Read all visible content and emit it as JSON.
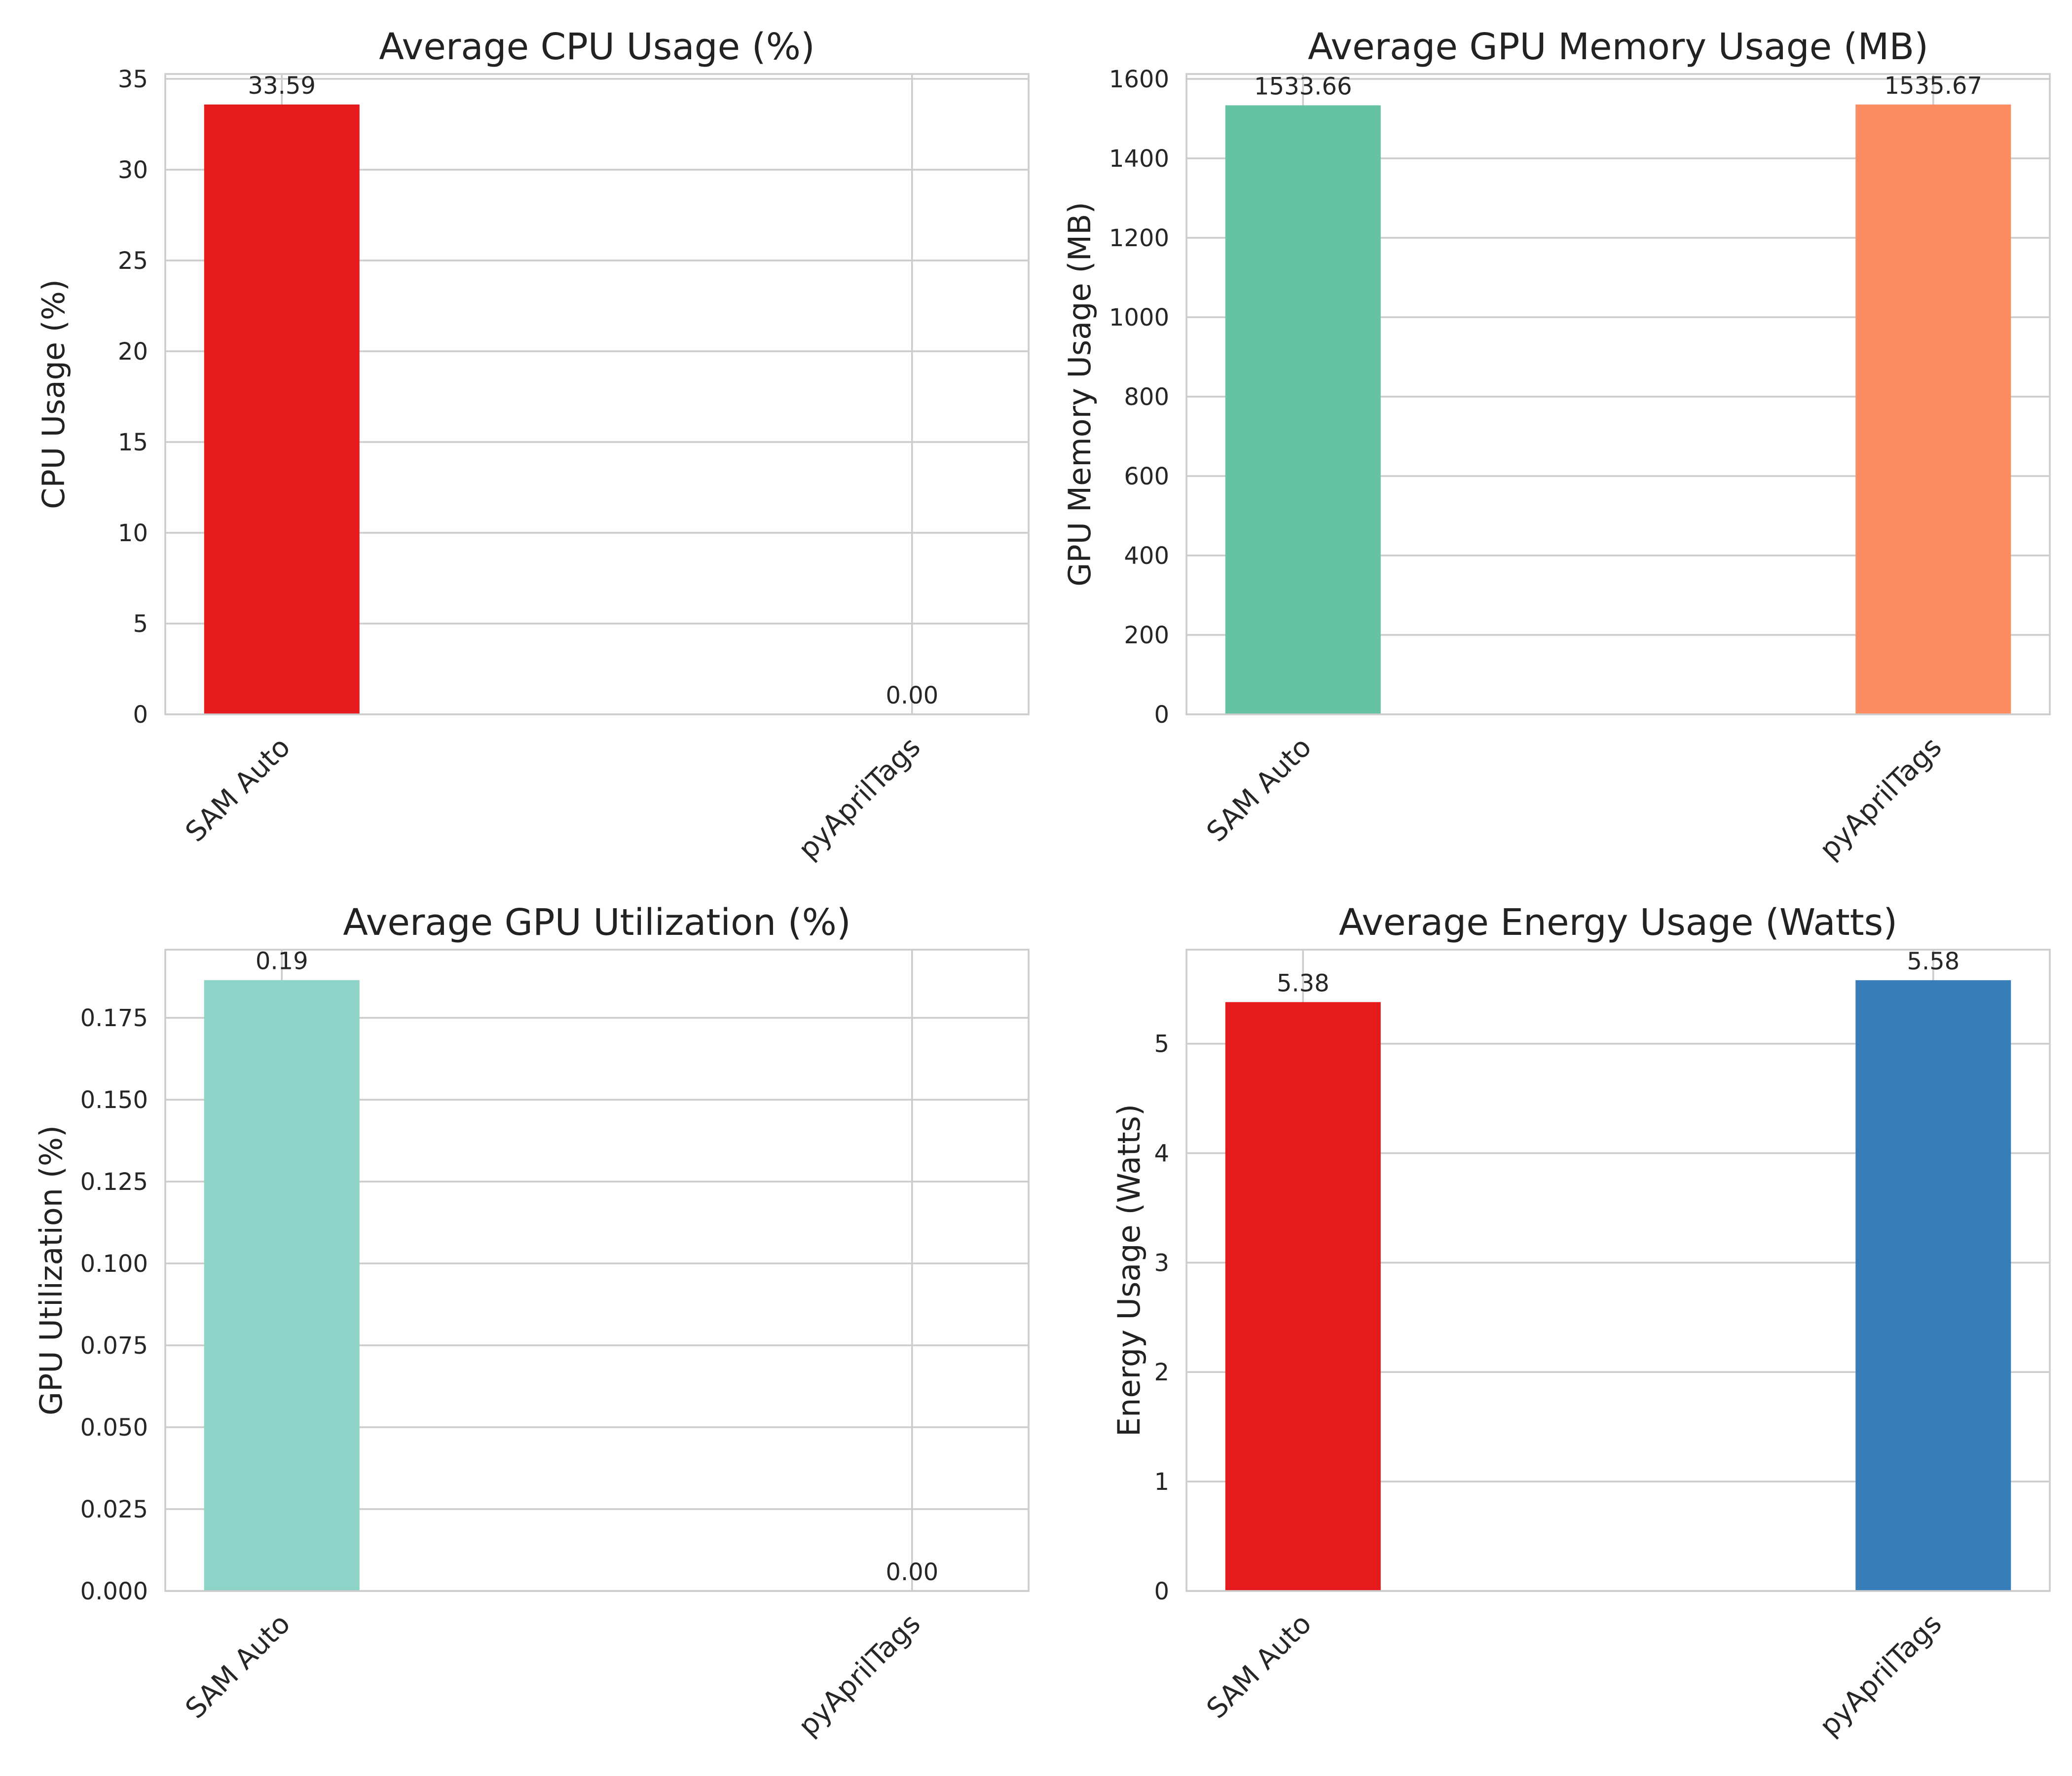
{
  "chart_data": [
    {
      "type": "bar",
      "title": "Average CPU Usage (%)",
      "ylabel": "CPU Usage (%)",
      "xlabel": "",
      "categories": [
        "SAM Auto",
        "pyAprilTags"
      ],
      "values": [
        33.59,
        0.0
      ],
      "data_labels": [
        "33.59",
        "0.00"
      ],
      "colors": [
        "#e41a1c",
        "#377eb8"
      ],
      "ylim": [
        0,
        35.27
      ],
      "yticks": [
        0,
        5,
        10,
        15,
        20,
        25,
        30,
        35
      ],
      "ytick_labels": [
        "0",
        "5",
        "10",
        "15",
        "20",
        "25",
        "30",
        "35"
      ],
      "grid": true
    },
    {
      "type": "bar",
      "title": "Average GPU Memory Usage (MB)",
      "ylabel": "GPU Memory Usage (MB)",
      "xlabel": "",
      "categories": [
        "SAM Auto",
        "pyAprilTags"
      ],
      "values": [
        1533.66,
        1535.67
      ],
      "data_labels": [
        "1533.66",
        "1535.67"
      ],
      "colors": [
        "#66c2a5",
        "#fc8d62"
      ],
      "ylim": [
        0,
        1612.45
      ],
      "yticks": [
        0,
        200,
        400,
        600,
        800,
        1000,
        1200,
        1400,
        1600
      ],
      "ytick_labels": [
        "0",
        "200",
        "400",
        "600",
        "800",
        "1000",
        "1200",
        "1400",
        "1600"
      ],
      "grid": true
    },
    {
      "type": "bar",
      "title": "Average GPU Utilization (%)",
      "ylabel": "GPU Utilization (%)",
      "xlabel": "",
      "categories": [
        "SAM Auto",
        "pyAprilTags"
      ],
      "values": [
        0.1865,
        0.0
      ],
      "data_labels": [
        "0.19",
        "0.00"
      ],
      "colors": [
        "#8dd3c7",
        "#ffffb3"
      ],
      "ylim": [
        0,
        0.1958
      ],
      "yticks": [
        0,
        0.025,
        0.05,
        0.075,
        0.1,
        0.125,
        0.15,
        0.175
      ],
      "ytick_labels": [
        "0.000",
        "0.025",
        "0.050",
        "0.075",
        "0.100",
        "0.125",
        "0.150",
        "0.175"
      ],
      "grid": true
    },
    {
      "type": "bar",
      "title": "Average Energy Usage (Watts)",
      "ylabel": "Energy Usage (Watts)",
      "xlabel": "",
      "categories": [
        "SAM Auto",
        "pyAprilTags"
      ],
      "values": [
        5.38,
        5.58
      ],
      "data_labels": [
        "5.38",
        "5.58"
      ],
      "colors": [
        "#e41a1c",
        "#377eb8"
      ],
      "ylim": [
        0,
        5.859
      ],
      "yticks": [
        0,
        1,
        2,
        3,
        4,
        5
      ],
      "ytick_labels": [
        "0",
        "1",
        "2",
        "3",
        "4",
        "5"
      ],
      "grid": true
    }
  ]
}
